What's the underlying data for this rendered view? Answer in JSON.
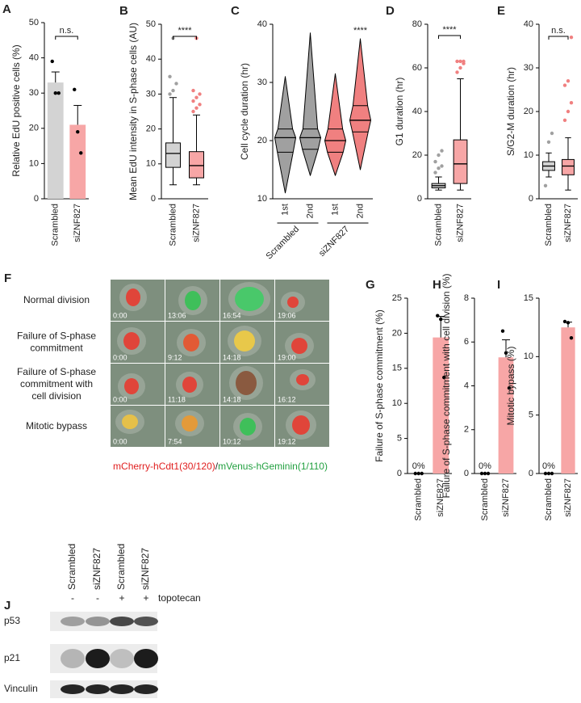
{
  "chart_data": [
    {
      "type": "bar",
      "label": "A",
      "ylabel": "Relative EdU positive cells (%)",
      "categories": [
        "Scrambled",
        "siZNF827"
      ],
      "values": [
        33,
        21
      ],
      "errors": [
        3,
        5.5
      ],
      "points": [
        [
          39,
          30,
          30
        ],
        [
          31,
          19,
          13
        ]
      ],
      "colors": [
        "#d3d3d3",
        "#f7a6a6"
      ],
      "ylim": [
        0,
        50
      ],
      "yticks": [
        0,
        10,
        20,
        30,
        40,
        50
      ],
      "annotation": "n.s."
    },
    {
      "type": "box",
      "label": "B",
      "ylabel": "Mean EdU intensity in S-phase cells (AU)",
      "categories": [
        "Scrambled",
        "siZNF827"
      ],
      "colors": [
        "#d3d3d3",
        "#f7a6a6"
      ],
      "outlier_colors": [
        "#a0a0a0",
        "#f08080"
      ],
      "boxes": [
        {
          "min": 4,
          "q1": 9,
          "median": 13,
          "q3": 16,
          "max": 29,
          "outliers": [
            30,
            31,
            33,
            35,
            46
          ]
        },
        {
          "min": 4,
          "q1": 6,
          "median": 9.5,
          "q3": 13.5,
          "max": 24,
          "outliers": [
            25,
            26,
            27,
            28,
            29,
            30,
            31,
            46
          ]
        }
      ],
      "ylim": [
        0,
        50
      ],
      "yticks": [
        0,
        10,
        20,
        30,
        40,
        50
      ],
      "annotation": "****"
    },
    {
      "type": "violin",
      "label": "C",
      "ylabel": "Cell cycle duration (hr)",
      "categories": [
        "1st",
        "2nd",
        "1st",
        "2nd"
      ],
      "groups": [
        "Scrambled",
        "siZNF827"
      ],
      "colors": [
        "#a0a0a0",
        "#a0a0a0",
        "#f08080",
        "#f08080"
      ],
      "violins": [
        {
          "min": 11,
          "q1": 18,
          "median": 20.5,
          "q3": 22,
          "max": 31
        },
        {
          "min": 14,
          "q1": 18.5,
          "median": 20.5,
          "q3": 22,
          "max": 38.5
        },
        {
          "min": 14,
          "q1": 18,
          "median": 20,
          "q3": 22,
          "max": 31.5
        },
        {
          "min": 15,
          "q1": 21.5,
          "median": 23.5,
          "q3": 26,
          "max": 37.5
        }
      ],
      "ylim": [
        10,
        40
      ],
      "yticks": [
        10,
        20,
        30,
        40
      ],
      "annotation": "****"
    },
    {
      "type": "box",
      "label": "D",
      "ylabel": "G1 duration (hr)",
      "categories": [
        "Scrambled",
        "siZNF827"
      ],
      "colors": [
        "#d3d3d3",
        "#f7a6a6"
      ],
      "outlier_colors": [
        "#a0a0a0",
        "#f08080"
      ],
      "boxes": [
        {
          "min": 4,
          "q1": 5,
          "median": 6,
          "q3": 7,
          "max": 10,
          "outliers": [
            12,
            14,
            15,
            17,
            20,
            22
          ]
        },
        {
          "min": 4,
          "q1": 7,
          "median": 16,
          "q3": 27,
          "max": 55,
          "outliers": [
            58,
            60,
            62,
            63,
            63,
            63
          ]
        }
      ],
      "ylim": [
        0,
        80
      ],
      "yticks": [
        0,
        20,
        40,
        60,
        80
      ],
      "annotation": "****"
    },
    {
      "type": "box",
      "label": "E",
      "ylabel": "S/G2-M duration (hr)",
      "categories": [
        "Scrambled",
        "siZNF827"
      ],
      "colors": [
        "#d3d3d3",
        "#f7a6a6"
      ],
      "outlier_colors": [
        "#a0a0a0",
        "#f08080"
      ],
      "boxes": [
        {
          "min": 5,
          "q1": 6.5,
          "median": 7.5,
          "q3": 8.5,
          "max": 10.5,
          "outliers": [
            3,
            13,
            15
          ]
        },
        {
          "min": 2,
          "q1": 5.5,
          "median": 7.5,
          "q3": 9,
          "max": 14,
          "outliers": [
            18,
            20,
            22,
            26,
            27,
            37
          ]
        }
      ],
      "ylim": [
        0,
        40
      ],
      "yticks": [
        0,
        10,
        20,
        30,
        40
      ],
      "annotation": "n.s."
    },
    {
      "type": "bar",
      "label": "G",
      "ylabel": "Failure of S-phase commitment (%)",
      "categories": [
        "Scrambled",
        "siZNF827"
      ],
      "values": [
        0,
        19.4
      ],
      "value_labels": [
        "0%",
        null
      ],
      "errors": [
        0,
        3
      ],
      "points": [
        [
          0,
          0,
          0
        ],
        [
          22.5,
          22,
          13.7
        ]
      ],
      "colors": [
        "#d3d3d3",
        "#f7a6a6"
      ],
      "ylim": [
        0,
        25
      ],
      "yticks": [
        0,
        5,
        10,
        15,
        20,
        25
      ]
    },
    {
      "type": "bar",
      "label": "H",
      "ylabel": "Failure of S-phase commitment with cell division (%)",
      "categories": [
        "Scrambled",
        "siZNF827"
      ],
      "values": [
        0,
        5.3
      ],
      "value_labels": [
        "0%",
        null
      ],
      "errors": [
        0,
        0.8
      ],
      "points": [
        [
          0,
          0,
          0
        ],
        [
          6.5,
          5.5,
          3.9
        ]
      ],
      "colors": [
        "#d3d3d3",
        "#f7a6a6"
      ],
      "ylim": [
        0,
        8
      ],
      "yticks": [
        0,
        2,
        4,
        6,
        8
      ]
    },
    {
      "type": "bar",
      "label": "I",
      "ylabel": "Mitotic bypass (%)",
      "categories": [
        "Scrambled",
        "siZNF827"
      ],
      "values": [
        0,
        12.5
      ],
      "value_labels": [
        "0%",
        null
      ],
      "errors": [
        0,
        0.45
      ],
      "points": [
        [
          0,
          0,
          0
        ],
        [
          13,
          12.9,
          11.6
        ]
      ],
      "colors": [
        "#d3d3d3",
        "#f7a6a6"
      ],
      "ylim": [
        0,
        15
      ],
      "yticks": [
        0,
        5,
        10,
        15
      ]
    }
  ],
  "panel_f": {
    "label": "F",
    "rows": [
      {
        "label": [
          "Normal division"
        ],
        "times": [
          "0:00",
          "13:06",
          "16:54",
          "19:06"
        ]
      },
      {
        "label": [
          "Failure of S-phase",
          "commitment"
        ],
        "times": [
          "0:00",
          "9:12",
          "14:18",
          "19:00"
        ]
      },
      {
        "label": [
          "Failure of S-phase",
          "commitment with",
          "cell division"
        ],
        "times": [
          "0:00",
          "11:18",
          "14:18",
          "16:12"
        ]
      },
      {
        "label": [
          "Mitotic bypass"
        ],
        "times": [
          "0:00",
          "7:54",
          "10:12",
          "19:12"
        ]
      }
    ],
    "caption": [
      "mCherry-hCdt1(30/120)",
      "/",
      "mVenus-hGeminin(1/110)"
    ]
  },
  "panel_j": {
    "label": "J",
    "lanes": [
      "Scrambled",
      "siZNF827",
      "Scrambled",
      "siZNF827"
    ],
    "treatment": [
      "-",
      "-",
      "+",
      "+"
    ],
    "treatment_label": "topotecan",
    "proteins": [
      "p53",
      "p21",
      "Vinculin"
    ]
  }
}
